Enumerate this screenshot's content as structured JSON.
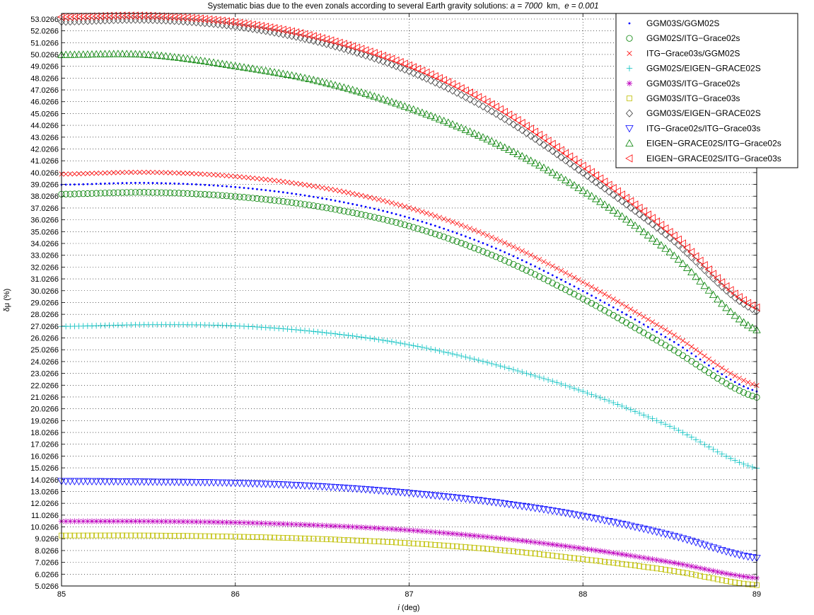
{
  "chart_data": {
    "type": "scatter",
    "title": {
      "prefix": "Systematic bias due to the even zonals according to several Earth gravity solutions: ",
      "a_var": "a",
      "a_val": " = 7000",
      "a_unit": "  km,  ",
      "e_var": "e",
      "e_val": " = 0.001"
    },
    "xlabel": {
      "var": "i",
      "unit": " (deg)"
    },
    "ylabel": "δμ (%)",
    "xlim": [
      85,
      89
    ],
    "ylim": [
      5.0266,
      53.5
    ],
    "xticks": [
      "85",
      "86",
      "87",
      "88",
      "89"
    ],
    "yticks": [
      "5.0266",
      "6.0266",
      "7.0266",
      "8.0266",
      "9.0266",
      "10.0266",
      "11.0266",
      "12.0266",
      "13.0266",
      "14.0266",
      "15.0266",
      "16.0266",
      "17.0266",
      "18.0266",
      "19.0266",
      "20.0266",
      "21.0266",
      "22.0266",
      "23.0266",
      "24.0266",
      "25.0266",
      "26.0266",
      "27.0266",
      "28.0266",
      "29.0266",
      "30.0266",
      "31.0266",
      "32.0266",
      "33.0266",
      "34.0266",
      "35.0266",
      "36.0266",
      "37.0266",
      "38.0266",
      "39.0266",
      "40.0266",
      "41.0266",
      "42.0266",
      "43.0266",
      "44.0266",
      "45.0266",
      "46.0266",
      "47.0266",
      "48.0266",
      "49.0266",
      "50.0266",
      "51.0266",
      "52.0266",
      "53.0266"
    ],
    "grid": true,
    "legend_position": "top-right",
    "x": [
      85.0,
      85.5,
      86.0,
      86.5,
      87.0,
      87.5,
      88.0,
      88.5,
      89.0
    ],
    "series": [
      {
        "name": "GGM03S/GGM02S",
        "color": "#0000ff",
        "marker": "dot",
        "values": [
          39.0,
          39.15,
          38.8,
          37.85,
          36.2,
          33.6,
          30.0,
          25.9,
          21.5
        ]
      },
      {
        "name": "GGM02S/ITG−Grace02s",
        "color": "#008000",
        "marker": "circle",
        "values": [
          38.2,
          38.35,
          38.0,
          37.1,
          35.5,
          32.9,
          29.35,
          25.2,
          21.0
        ]
      },
      {
        "name": " ITG−Grace03s/GGM02S",
        "color": "#ff0000",
        "marker": "x",
        "values": [
          39.9,
          40.05,
          39.7,
          38.75,
          37.05,
          34.4,
          30.75,
          26.5,
          22.0
        ]
      },
      {
        "name": " GGM02S/EIGEN−GRACE02S",
        "color": "#00bfbf",
        "marker": "plus",
        "values": [
          27.0,
          27.15,
          27.05,
          26.5,
          25.45,
          23.75,
          21.5,
          18.55,
          15.0
        ]
      },
      {
        "name": "GGM03S/ITG−Grace02s",
        "color": "#bf00bf",
        "marker": "star",
        "values": [
          10.5,
          10.5,
          10.4,
          10.15,
          9.75,
          9.1,
          8.2,
          7.05,
          5.7
        ]
      },
      {
        "name": "GGM03S/ITG−Grace03s",
        "color": "#bfbf00",
        "marker": "square",
        "values": [
          9.3,
          9.3,
          9.2,
          9.0,
          8.65,
          8.1,
          7.3,
          6.35,
          5.1
        ]
      },
      {
        "name": "GGM03S/EIGEN−GRACE02S",
        "color": "#404040",
        "marker": "diamond",
        "values": [
          52.8,
          52.95,
          52.4,
          51.0,
          48.6,
          45.0,
          40.0,
          34.5,
          28.3
        ]
      },
      {
        "name": "ITG−Grace02s/ITG−Grace03s",
        "color": "#0000ff",
        "marker": "triangle-down",
        "values": [
          13.9,
          13.85,
          13.75,
          13.45,
          12.9,
          12.1,
          10.95,
          9.35,
          7.4
        ]
      },
      {
        "name": "EIGEN−GRACE02S/ITG−Grace02s",
        "color": "#008000",
        "marker": "triangle-up",
        "values": [
          50.0,
          50.0,
          49.05,
          47.7,
          45.5,
          42.5,
          38.5,
          33.3,
          26.7
        ]
      },
      {
        "name": "EIGEN−GRACE02S/ITG−Grace03s",
        "color": "#ff0000",
        "marker": "triangle-left",
        "values": [
          53.2,
          53.3,
          52.75,
          51.4,
          49.1,
          45.6,
          40.6,
          35.0,
          28.6
        ]
      }
    ]
  }
}
